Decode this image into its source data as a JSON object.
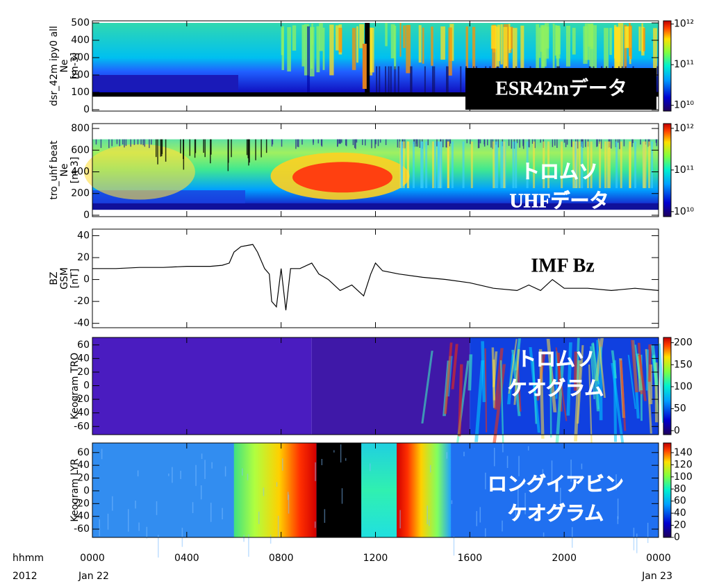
{
  "chart_data": [
    {
      "type": "spectrogram",
      "ylabel": [
        "dsr_42m ipy0 all",
        "Ne",
        "[m-3]"
      ],
      "ylim": [
        -8,
        512
      ],
      "yticks": [
        0,
        100,
        200,
        300,
        400,
        500
      ],
      "zlim": [
        7200000000,
        1200000000000
      ],
      "zlog": true,
      "zticks": [
        {
          "value": 10000000000,
          "label": "10¹⁰"
        },
        {
          "value": 100000000000,
          "label": "10¹¹"
        },
        {
          "value": 1000000000000,
          "label": "10¹²"
        }
      ],
      "annotation": [
        "ESR42mデータ"
      ]
    },
    {
      "type": "spectrogram",
      "ylabel": [
        "tro_uhf beat",
        "Ne",
        "[m-3]"
      ],
      "ylim": [
        -13,
        845
      ],
      "yticks": [
        0,
        200,
        400,
        600,
        800
      ],
      "zlim": [
        7600000000,
        1300000000000
      ],
      "zlog": true,
      "zticks": [
        {
          "value": 10000000000,
          "label": "10¹⁰"
        },
        {
          "value": 100000000000,
          "label": "10¹¹"
        },
        {
          "value": 1000000000000,
          "label": "10¹²"
        }
      ],
      "annotation": [
        "トロムソ",
        "UHFデータ"
      ]
    },
    {
      "type": "line",
      "ylabel": [
        "BZ",
        "GSM",
        "[nT]"
      ],
      "ylim": [
        -44,
        46
      ],
      "yticks": [
        -40,
        -20,
        0,
        20,
        40
      ],
      "color": "#000000",
      "x": [
        0,
        1,
        2,
        3,
        4,
        5,
        5.5,
        5.8,
        6.0,
        6.3,
        6.8,
        7.0,
        7.3,
        7.5,
        7.6,
        7.8,
        8.0,
        8.2,
        8.4,
        8.8,
        9.3,
        9.6,
        10.0,
        10.5,
        11.0,
        11.5,
        11.8,
        12.0,
        12.3,
        13,
        14,
        15,
        16,
        17,
        18,
        18.5,
        19,
        19.5,
        20,
        21,
        22,
        23,
        24
      ],
      "values": [
        10,
        10,
        11,
        11,
        12,
        12,
        13,
        15,
        25,
        30,
        32,
        25,
        10,
        5,
        -20,
        -25,
        10,
        -28,
        10,
        10,
        15,
        5,
        0,
        -10,
        -5,
        -15,
        5,
        15,
        8,
        5,
        2,
        0,
        -3,
        -8,
        -10,
        -5,
        -10,
        0,
        -8,
        -8,
        -10,
        -8,
        -10
      ],
      "annotation": [
        "IMF Bz"
      ]
    },
    {
      "type": "spectrogram",
      "ylabel": [
        "Keogram TRO"
      ],
      "ylim": [
        -72,
        71
      ],
      "yticks": [
        -60,
        -40,
        -20,
        0,
        20,
        40,
        60
      ],
      "zlim": [
        -9,
        212
      ],
      "zticks": [
        0,
        50,
        100,
        150,
        200
      ],
      "annotation": [
        "トロムソ",
        "ケオグラム"
      ]
    },
    {
      "type": "spectrogram",
      "ylabel": [
        "Keogram LYR"
      ],
      "ylim": [
        -73,
        75
      ],
      "yticks": [
        -60,
        -40,
        -20,
        0,
        20,
        40,
        60
      ],
      "zlim": [
        0,
        156
      ],
      "zticks": [
        0,
        20,
        40,
        60,
        80,
        100,
        120,
        140
      ],
      "annotation": [
        "ロングイアビン",
        "ケオグラム"
      ]
    }
  ],
  "x_axis": {
    "xlim": [
      0,
      24
    ],
    "xticks": [
      {
        "value": 0,
        "label": "0000"
      },
      {
        "value": 4,
        "label": "0400"
      },
      {
        "value": 8,
        "label": "0800"
      },
      {
        "value": 12,
        "label": "1200"
      },
      {
        "value": 16,
        "label": "1600"
      },
      {
        "value": 20,
        "label": "2000"
      },
      {
        "value": 24,
        "label": "0000"
      }
    ],
    "row_labels": [
      "hhmm",
      "2012"
    ],
    "date_labels": [
      "Jan 22",
      "Jan 23"
    ]
  }
}
